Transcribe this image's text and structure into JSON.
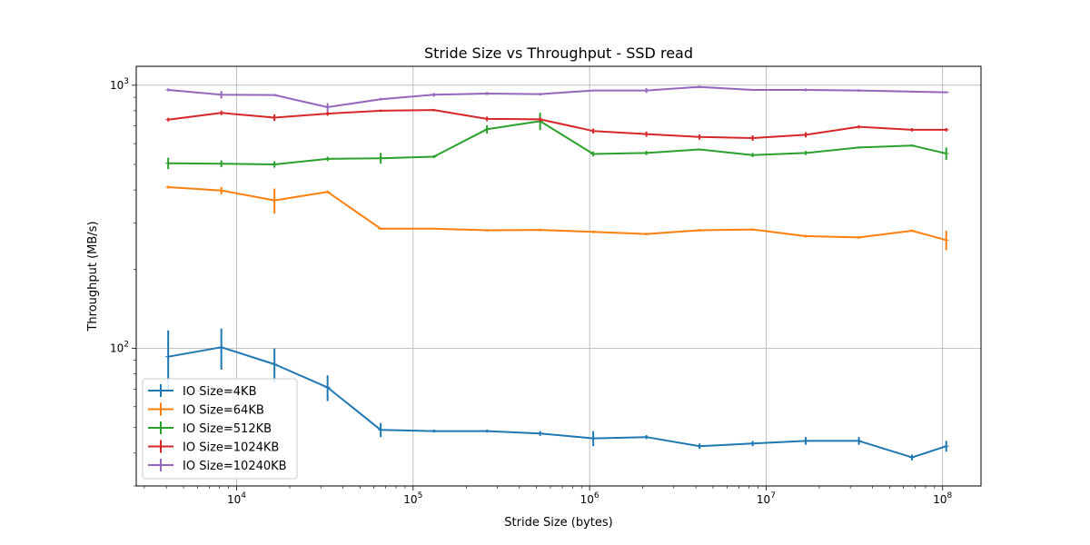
{
  "chart_data": {
    "type": "line",
    "title": "Stride Size vs Throughput - SSD read",
    "xlabel": "Stride Size (bytes)",
    "ylabel": "Throughput (MB/s)",
    "xscale": "log",
    "yscale": "log",
    "xlim": [
      2700,
      165000000
    ],
    "ylim": [
      30,
      1180
    ],
    "grid": true,
    "legend_position": "lower-left",
    "x_major_ticks": [
      {
        "value": 10000,
        "base": "10",
        "exp": "4"
      },
      {
        "value": 100000,
        "base": "10",
        "exp": "5"
      },
      {
        "value": 1000000,
        "base": "10",
        "exp": "6"
      },
      {
        "value": 10000000,
        "base": "10",
        "exp": "7"
      },
      {
        "value": 100000000,
        "base": "10",
        "exp": "8"
      }
    ],
    "y_major_ticks": [
      {
        "value": 100,
        "base": "10",
        "exp": "2"
      },
      {
        "value": 1000,
        "base": "10",
        "exp": "3"
      }
    ],
    "x": [
      4096,
      8192,
      16384,
      32768,
      65536,
      131072,
      262144,
      524288,
      1048576,
      2097152,
      4194304,
      8388608,
      16777216,
      33554432,
      67108864,
      104857600
    ],
    "series": [
      {
        "name": "IO Size=4KB",
        "color": "#1f77b4",
        "values": [
          93,
          101,
          87,
          71,
          49,
          48.5,
          48.5,
          47.5,
          45.5,
          46,
          42.5,
          43.5,
          44.5,
          44.5,
          38.5,
          42.5
        ],
        "errors": [
          24,
          18,
          13,
          8,
          3,
          0.6,
          0.6,
          1,
          3,
          0.8,
          1,
          1,
          1.5,
          1.5,
          1,
          2
        ]
      },
      {
        "name": "IO Size=64KB",
        "color": "#ff7f0e",
        "values": [
          410,
          398,
          365,
          393,
          285,
          285,
          281,
          282,
          277,
          272,
          281,
          283,
          267,
          264,
          280,
          258
        ],
        "errors": [
          5,
          13,
          40,
          5,
          3,
          2,
          3,
          3,
          3,
          3,
          3,
          3,
          3,
          3,
          3,
          22
        ]
      },
      {
        "name": "IO Size=512KB",
        "color": "#2ca02c",
        "values": [
          505,
          503,
          500,
          525,
          528,
          535,
          680,
          730,
          548,
          553,
          570,
          543,
          553,
          580,
          590,
          550
        ],
        "errors": [
          25,
          15,
          14,
          10,
          25,
          7,
          25,
          55,
          12,
          10,
          5,
          10,
          10,
          5,
          5,
          30
        ]
      },
      {
        "name": "IO Size=1024KB",
        "color": "#d62728",
        "values": [
          740,
          785,
          753,
          780,
          800,
          805,
          745,
          742,
          670,
          652,
          636,
          630,
          648,
          695,
          677,
          677
        ],
        "errors": [
          12,
          15,
          22,
          15,
          8,
          8,
          15,
          15,
          15,
          15,
          15,
          15,
          15,
          10,
          10,
          10
        ]
      },
      {
        "name": "IO Size=10240KB",
        "color": "#9467bd",
        "values": [
          960,
          920,
          918,
          825,
          885,
          920,
          930,
          925,
          955,
          955,
          985,
          960,
          960,
          955,
          945,
          940
        ],
        "errors": [
          12,
          30,
          8,
          30,
          10,
          15,
          12,
          10,
          8,
          20,
          10,
          8,
          12,
          10,
          8,
          8
        ]
      }
    ]
  }
}
